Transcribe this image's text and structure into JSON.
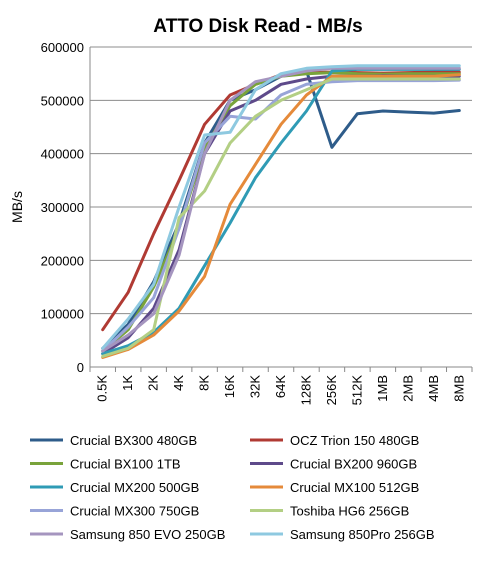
{
  "chart_data": {
    "type": "line",
    "title": "ATTO Disk Read - MB/s",
    "ylabel": "MB/s",
    "xlabel": "",
    "ylim": [
      0,
      600000
    ],
    "yticks": [
      0,
      100000,
      200000,
      300000,
      400000,
      500000,
      600000
    ],
    "ytick_labels": [
      "0",
      "100000",
      "200000",
      "300000",
      "400000",
      "500000",
      "600000"
    ],
    "grid": true,
    "legend_position": "bottom",
    "categories": [
      "0.5K",
      "1K",
      "2K",
      "4K",
      "8K",
      "16K",
      "32K",
      "64K",
      "128K",
      "256K",
      "512K",
      "1MB",
      "2MB",
      "4MB",
      "8MB"
    ],
    "series": [
      {
        "name": "Crucial BX300 480GB",
        "color": "#2e5c8a",
        "values": [
          35000,
          80000,
          160000,
          270000,
          420000,
          500000,
          520000,
          545000,
          555000,
          412000,
          475000,
          480000,
          478000,
          476000,
          481000
        ]
      },
      {
        "name": "OCZ Trion 150 480GB",
        "color": "#b03a33",
        "values": [
          70000,
          140000,
          250000,
          350000,
          455000,
          510000,
          530000,
          548000,
          552000,
          553000,
          552000,
          551000,
          552000,
          553000,
          553000
        ]
      },
      {
        "name": "Crucial BX100 1TB",
        "color": "#79a33b",
        "values": [
          30000,
          70000,
          150000,
          260000,
          410000,
          490000,
          530000,
          545000,
          550000,
          552000,
          550000,
          549000,
          550000,
          550000,
          550000
        ]
      },
      {
        "name": "Crucial BX200 960GB",
        "color": "#5e4a8a",
        "values": [
          25000,
          55000,
          110000,
          220000,
          400000,
          480000,
          500000,
          530000,
          540000,
          545000,
          545000,
          546000,
          545000,
          545000,
          545000
        ]
      },
      {
        "name": "Crucial MX200 500GB",
        "color": "#2f9bb5",
        "values": [
          25000,
          40000,
          65000,
          110000,
          190000,
          270000,
          355000,
          420000,
          480000,
          555000,
          558000,
          558000,
          558000,
          558000,
          558000
        ]
      },
      {
        "name": "Crucial MX100 512GB",
        "color": "#e58a3a",
        "values": [
          18000,
          33000,
          60000,
          105000,
          170000,
          305000,
          380000,
          455000,
          510000,
          545000,
          545000,
          545000,
          545000,
          545000,
          548000
        ]
      },
      {
        "name": "Crucial MX300 750GB",
        "color": "#98a4d8",
        "values": [
          30000,
          75000,
          130000,
          260000,
          420000,
          470000,
          465000,
          510000,
          530000,
          535000,
          537000,
          537000,
          537000,
          537000,
          538000
        ]
      },
      {
        "name": "Toshiba HG6 256GB",
        "color": "#b3cf84",
        "values": [
          20000,
          35000,
          70000,
          280000,
          330000,
          420000,
          470000,
          500000,
          520000,
          540000,
          540000,
          540000,
          540000,
          540000,
          540000
        ]
      },
      {
        "name": "Samsung 850 EVO 250GB",
        "color": "#a595bf",
        "values": [
          30000,
          60000,
          100000,
          210000,
          400000,
          500000,
          535000,
          545000,
          555000,
          560000,
          560000,
          560000,
          560000,
          560000,
          560000
        ]
      },
      {
        "name": "Samsung 850Pro 256GB",
        "color": "#8ec9e0",
        "values": [
          35000,
          90000,
          155000,
          300000,
          435000,
          440000,
          520000,
          550000,
          560000,
          563000,
          565000,
          565000,
          565000,
          565000,
          565000
        ]
      }
    ]
  }
}
